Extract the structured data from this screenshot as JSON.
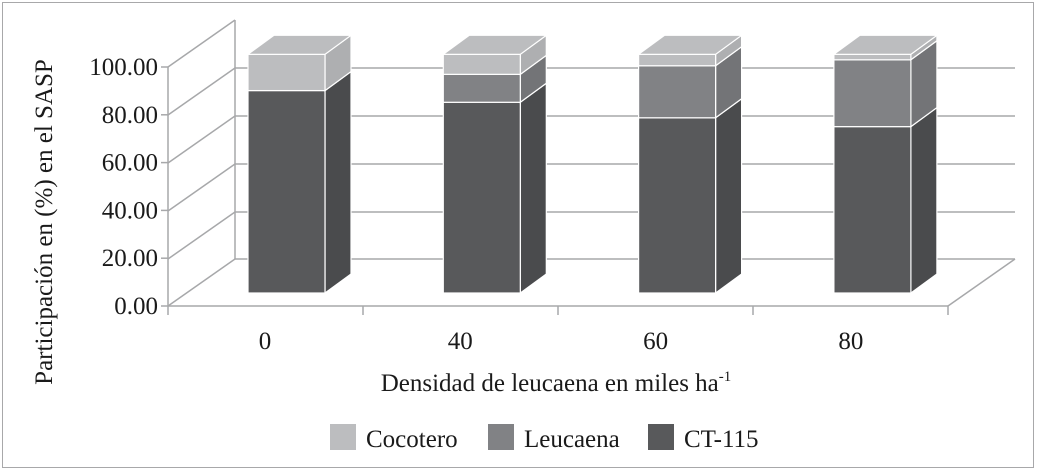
{
  "chart_data": {
    "type": "bar",
    "stacked": true,
    "three_d": true,
    "title": "",
    "xlabel": "Densidad de leucaena en miles ha",
    "xlabel_superscript": "-1",
    "ylabel": "Participación en (%) en el SASP",
    "ylim": [
      0,
      100
    ],
    "yticks": [
      "0.00",
      "20.00",
      "40.00",
      "60.00",
      "80.00",
      "100.00"
    ],
    "categories": [
      "0",
      "40",
      "60",
      "80"
    ],
    "series": [
      {
        "name": "CT-115",
        "color": "#58595b",
        "side": "#4a4b4d",
        "values": [
          84.8,
          79.9,
          73.4,
          69.7
        ]
      },
      {
        "name": "Leucaena",
        "color": "#818285",
        "side": "#737477",
        "values": [
          0,
          11.7,
          21.8,
          28.0
        ]
      },
      {
        "name": "Cocotero",
        "color": "#bcbdbf",
        "side": "#aeafb1",
        "values": [
          15.2,
          8.4,
          4.8,
          2.3
        ]
      }
    ],
    "legend": {
      "position": "bottom",
      "order": [
        "Cocotero",
        "Leucaena",
        "CT-115"
      ]
    },
    "grid": true
  }
}
